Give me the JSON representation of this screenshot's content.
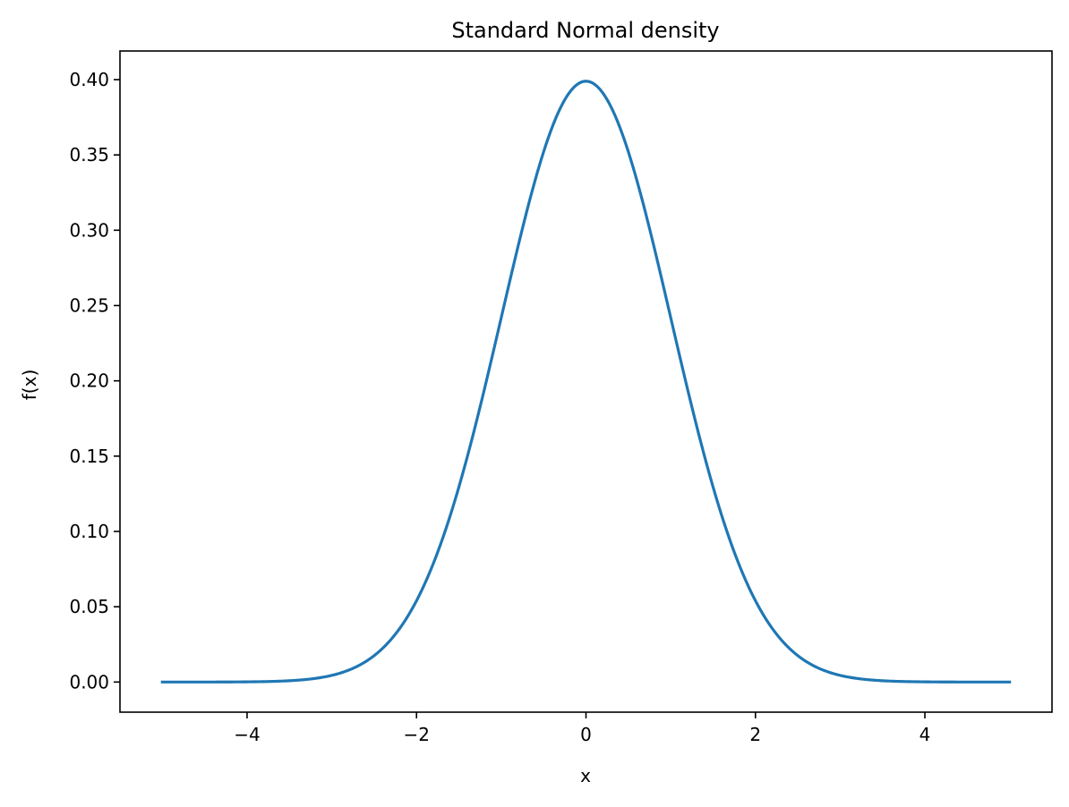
{
  "chart_data": {
    "type": "line",
    "title": "Standard Normal density",
    "xlabel": "x",
    "ylabel": "f(x)",
    "xlim": [
      -5.5,
      5.5
    ],
    "ylim": [
      -0.02,
      0.419
    ],
    "xticks": [
      -4,
      -2,
      0,
      2,
      4
    ],
    "xtick_labels": [
      "−4",
      "−2",
      "0",
      "2",
      "4"
    ],
    "yticks": [
      0.0,
      0.05,
      0.1,
      0.15,
      0.2,
      0.25,
      0.3,
      0.35,
      0.4
    ],
    "ytick_labels": [
      "0.00",
      "0.05",
      "0.10",
      "0.15",
      "0.20",
      "0.25",
      "0.30",
      "0.35",
      "0.40"
    ],
    "grid": false,
    "series": [
      {
        "color": "#1f77b4",
        "x": [
          -5.0,
          -4.5,
          -4.0,
          -3.5,
          -3.0,
          -2.75,
          -2.5,
          -2.25,
          -2.0,
          -1.75,
          -1.5,
          -1.25,
          -1.0,
          -0.75,
          -0.5,
          -0.25,
          0.0,
          0.25,
          0.5,
          0.75,
          1.0,
          1.25,
          1.5,
          1.75,
          2.0,
          2.25,
          2.5,
          2.75,
          3.0,
          3.5,
          4.0,
          4.5,
          5.0
        ],
        "y": [
          0.0,
          0.0,
          0.0001,
          0.0009,
          0.0044,
          0.0091,
          0.0175,
          0.0317,
          0.054,
          0.0863,
          0.1295,
          0.1826,
          0.242,
          0.3011,
          0.3521,
          0.3867,
          0.3989,
          0.3867,
          0.3521,
          0.3011,
          0.242,
          0.1826,
          0.1295,
          0.0863,
          0.054,
          0.0317,
          0.0175,
          0.0091,
          0.0044,
          0.0009,
          0.0001,
          0.0,
          0.0
        ]
      }
    ]
  }
}
